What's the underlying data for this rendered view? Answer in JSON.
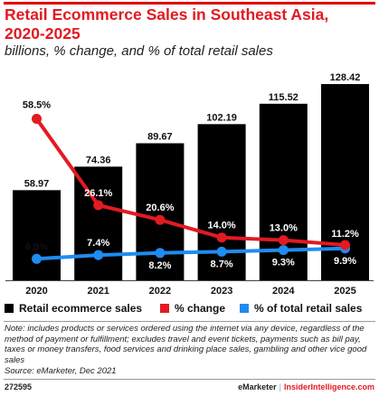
{
  "header": {
    "title": "Retail Ecommerce Sales in Southeast Asia, 2020-2025",
    "subtitle": "billions, % change, and % of total retail sales"
  },
  "legend": [
    {
      "label": "Retail ecommerce sales",
      "color": "#000000"
    },
    {
      "label": "% change",
      "color": "#e21a22"
    },
    {
      "label": "% of total retail sales",
      "color": "#1e8cf0"
    }
  ],
  "chart_data": {
    "type": "bar",
    "categories": [
      "2020",
      "2021",
      "2022",
      "2023",
      "2024",
      "2025"
    ],
    "series": [
      {
        "name": "Retail ecommerce sales",
        "type": "bar",
        "color": "#000000",
        "values": [
          58.97,
          74.36,
          89.67,
          102.19,
          115.52,
          128.42
        ],
        "labels": [
          "58.97",
          "74.36",
          "89.67",
          "102.19",
          "115.52",
          "128.42"
        ]
      },
      {
        "name": "% change",
        "type": "line",
        "color": "#e21a22",
        "values": [
          58.5,
          26.1,
          20.6,
          14.0,
          13.0,
          11.2
        ],
        "labels": [
          "58.5%",
          "26.1%",
          "20.6%",
          "14.0%",
          "13.0%",
          "11.2%"
        ]
      },
      {
        "name": "% of total retail sales",
        "type": "line",
        "color": "#1e8cf0",
        "values": [
          6.0,
          7.4,
          8.2,
          8.7,
          9.3,
          9.9
        ],
        "labels": [
          "6.0%",
          "7.4%",
          "8.2%",
          "8.7%",
          "9.3%",
          "9.9%"
        ]
      }
    ],
    "ylim": [
      0,
      140
    ]
  },
  "footer": {
    "note": "Note: includes products or services ordered using the internet via any device, regardless of the method of payment or fulfillment; excludes travel and event tickets, payments such as bill pay, taxes or money transfers, food services and drinking place sales, gambling and other vice good sales",
    "source": "Source: eMarketer, Dec 2021",
    "id": "272595",
    "brand_left": "eMarketer",
    "brand_sep": "|",
    "brand_right": "InsiderIntelligence.com"
  }
}
